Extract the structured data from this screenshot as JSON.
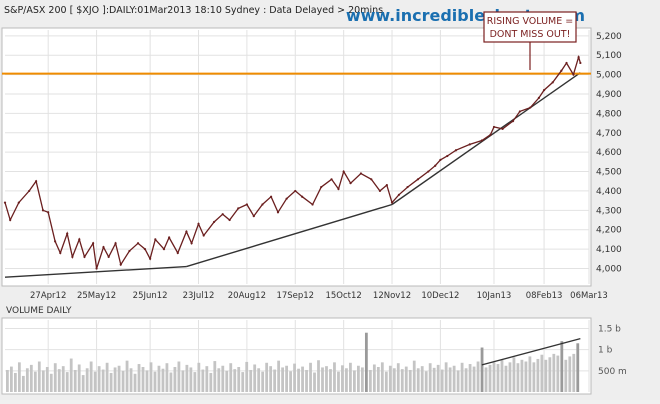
{
  "header": {
    "title": "S&P/ASX 200 [ $XJO ]:DAILY:01Mar2013 18:10 Sydney : Data Delayed > 20mins",
    "watermark": "www.incrediblecharts.com"
  },
  "annotation": {
    "lines": [
      "RISING VOLUME =",
      "DONT MISS OUT!"
    ],
    "color": "#7a1f1f"
  },
  "colors": {
    "price_line": "#6b1f1f",
    "resistance": "#f08c00",
    "trendline": "#333333",
    "volume_bar": "#c4c4c4",
    "volume_bar_high": "#9a9a9a",
    "grid": "#e2e2e2",
    "panel_bg": "#ffffff"
  },
  "chart_data": [
    {
      "type": "line",
      "ylim": [
        3920,
        5230
      ],
      "y_ticks": [
        "5,200",
        "5,100",
        "5,000",
        "4,900",
        "4,800",
        "4,700",
        "4,600",
        "4,500",
        "4,400",
        "4,300",
        "4,200",
        "4,100",
        "4,000"
      ],
      "y_tick_values": [
        5200,
        5100,
        5000,
        4900,
        4800,
        4700,
        4600,
        4500,
        4400,
        4300,
        4200,
        4100,
        4000
      ],
      "x_ticks": [
        "27Apr12",
        "25May12",
        "25Jun12",
        "23Jul12",
        "20Aug12",
        "17Sep12",
        "15Oct12",
        "12Nov12",
        "10Dec12",
        "10Jan13",
        "08Feb13",
        "06Mar13"
      ],
      "x": [
        "2012-04-02",
        "2012-04-05",
        "2012-04-10",
        "2012-04-16",
        "2012-04-20",
        "2012-04-24",
        "2012-04-27",
        "2012-05-01",
        "2012-05-04",
        "2012-05-08",
        "2012-05-11",
        "2012-05-15",
        "2012-05-18",
        "2012-05-23",
        "2012-05-25",
        "2012-05-29",
        "2012-06-01",
        "2012-06-05",
        "2012-06-08",
        "2012-06-13",
        "2012-06-18",
        "2012-06-22",
        "2012-06-25",
        "2012-06-28",
        "2012-07-03",
        "2012-07-06",
        "2012-07-11",
        "2012-07-16",
        "2012-07-19",
        "2012-07-23",
        "2012-07-26",
        "2012-08-01",
        "2012-08-06",
        "2012-08-10",
        "2012-08-15",
        "2012-08-20",
        "2012-08-24",
        "2012-08-29",
        "2012-09-03",
        "2012-09-07",
        "2012-09-12",
        "2012-09-17",
        "2012-09-21",
        "2012-09-27",
        "2012-10-02",
        "2012-10-08",
        "2012-10-12",
        "2012-10-15",
        "2012-10-19",
        "2012-10-25",
        "2012-10-31",
        "2012-11-05",
        "2012-11-09",
        "2012-11-12",
        "2012-11-16",
        "2012-11-21",
        "2012-11-27",
        "2012-12-03",
        "2012-12-07",
        "2012-12-10",
        "2012-12-14",
        "2012-12-19",
        "2012-12-27",
        "2013-01-03",
        "2013-01-08",
        "2013-01-10",
        "2013-01-15",
        "2013-01-21",
        "2013-01-25",
        "2013-01-31",
        "2013-02-05",
        "2013-02-08",
        "2013-02-13",
        "2013-02-18",
        "2013-02-21",
        "2013-02-25",
        "2013-02-28",
        "2013-03-01"
      ],
      "series": [
        {
          "values": [
            4340,
            4250,
            4340,
            4400,
            4450,
            4300,
            4290,
            4140,
            4080,
            4180,
            4060,
            4150,
            4060,
            4130,
            4000,
            4110,
            4060,
            4130,
            4020,
            4090,
            4130,
            4100,
            4050,
            4150,
            4100,
            4160,
            4080,
            4190,
            4130,
            4230,
            4170,
            4240,
            4280,
            4250,
            4310,
            4330,
            4270,
            4330,
            4370,
            4290,
            4360,
            4400,
            4370,
            4330,
            4420,
            4460,
            4410,
            4500,
            4440,
            4490,
            4460,
            4400,
            4430,
            4340,
            4380,
            4420,
            4460,
            4500,
            4530,
            4560,
            4580,
            4610,
            4640,
            4660,
            4690,
            4730,
            4720,
            4760,
            4810,
            4830,
            4880,
            4920,
            4960,
            5020,
            5060,
            5000,
            5090,
            5060
          ]
        }
      ],
      "resistance_level": 5005,
      "trendlines": [
        {
          "from": [
            "2012-04-02",
            3955
          ],
          "to": [
            "2012-07-16",
            4010
          ]
        },
        {
          "from": [
            "2012-07-16",
            4010
          ],
          "to": [
            "2012-11-12",
            4330
          ]
        },
        {
          "from": [
            "2012-11-12",
            4330
          ],
          "to": [
            "2013-03-01",
            5010
          ]
        }
      ]
    },
    {
      "type": "bar",
      "title": "VOLUME DAILY",
      "ylim": [
        0,
        1700
      ],
      "y_ticks": [
        "1.5 b",
        "1 b",
        "500 m"
      ],
      "y_tick_values": [
        1500,
        1000,
        500
      ],
      "unit": "millions",
      "x_start": "2012-04-02",
      "x_end": "2013-03-01",
      "values": [
        520,
        600,
        450,
        700,
        380,
        560,
        640,
        480,
        720,
        510,
        590,
        430,
        680,
        540,
        610,
        470,
        790,
        520,
        650,
        400,
        560,
        720,
        480,
        610,
        530,
        690,
        450,
        580,
        620,
        500,
        740,
        560,
        430,
        660,
        590,
        510,
        700,
        480,
        620,
        550,
        680,
        460,
        590,
        720,
        510,
        640,
        580,
        470,
        690,
        530,
        610,
        450,
        730,
        560,
        620,
        500,
        680,
        540,
        590,
        470,
        710,
        520,
        650,
        560,
        480,
        690,
        610,
        530,
        740,
        580,
        620,
        490,
        670,
        550,
        600,
        520,
        690,
        460,
        750,
        580,
        610,
        540,
        700,
        480,
        630,
        560,
        690,
        510,
        620,
        580,
        1400,
        520,
        650,
        590,
        700,
        480,
        620,
        560,
        680,
        540,
        600,
        520,
        740,
        560,
        610,
        490,
        680,
        570,
        640,
        530,
        700,
        580,
        620,
        510,
        690,
        560,
        660,
        600,
        720,
        1050,
        580,
        640,
        700,
        660,
        760,
        620,
        700,
        820,
        680,
        760,
        720,
        840,
        700,
        780,
        880,
        760,
        820,
        900,
        860,
        1200,
        760,
        840,
        900,
        1150
      ]
    }
  ]
}
